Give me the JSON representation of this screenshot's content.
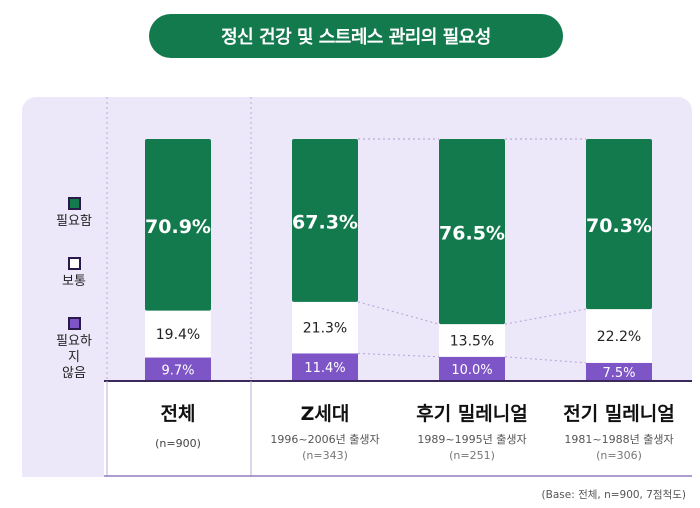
{
  "title": "정신 건강 및 스트레스 관리의 필요성",
  "legend": [
    {
      "label": "필요함",
      "color": "#137a4e"
    },
    {
      "label": "보통",
      "color": "#ffffff"
    },
    {
      "label": "필요하지\n않음",
      "color": "#7d55c7"
    }
  ],
  "source_note": "(Base: 전체, n=900, 7점척도)",
  "colors": {
    "green": "#137a4e",
    "white": "#ffffff",
    "purple": "#7d55c7",
    "panel": "#ece8f9",
    "divider": "#3a2a5a"
  },
  "chart_data": {
    "type": "bar",
    "stacked": true,
    "percent_scale": [
      0,
      100
    ],
    "categories": [
      "전체",
      "Z세대",
      "후기 밀레니얼",
      "전기 밀레니얼"
    ],
    "subtitles": [
      "",
      "1996~2006년 출생자",
      "1989~1995년 출생자",
      "1981~1988년 출생자"
    ],
    "sample_sizes": [
      "(n=900)",
      "(n=343)",
      "(n=251)",
      "(n=306)"
    ],
    "series": [
      {
        "name": "필요하지 않음",
        "values": [
          9.7,
          11.4,
          10.0,
          7.5
        ],
        "labels": [
          "9.7%",
          "11.4%",
          "10.0%",
          "7.5%"
        ]
      },
      {
        "name": "보통",
        "values": [
          19.4,
          21.3,
          13.5,
          22.2
        ],
        "labels": [
          "19.4%",
          "21.3%",
          "13.5%",
          "22.2%"
        ]
      },
      {
        "name": "필요함",
        "values": [
          70.9,
          67.3,
          76.5,
          70.3
        ],
        "labels": [
          "70.9%",
          "67.3%",
          "76.5%",
          "70.3%"
        ]
      }
    ]
  }
}
